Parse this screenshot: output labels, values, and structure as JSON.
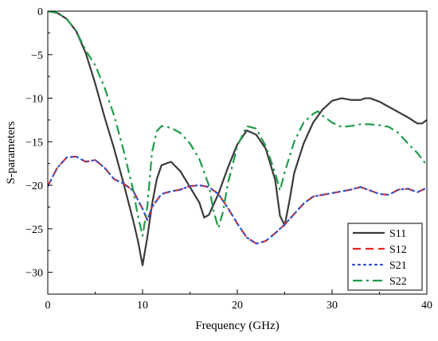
{
  "chart_data": {
    "type": "line",
    "xlabel": "Frequency (GHz)",
    "ylabel": "S-parameters",
    "xlim": [
      0,
      40
    ],
    "ylim": [
      -32.5,
      0
    ],
    "xticks": [
      0,
      10,
      20,
      30,
      40
    ],
    "xtick_labels": [
      "0",
      "10",
      "20",
      "30",
      "40"
    ],
    "yticks": [
      0,
      -5,
      -10,
      -15,
      -20,
      -25,
      -30
    ],
    "ytick_labels": [
      "0",
      "−5",
      "−10",
      "−15",
      "−20",
      "−25",
      "−30"
    ],
    "grid": false,
    "legend_position": "bottom-right",
    "series": [
      {
        "name": "S11",
        "color": "#3a3a3a",
        "dash": "solid",
        "points": [
          [
            0,
            0
          ],
          [
            1,
            -0.2
          ],
          [
            2,
            -0.9
          ],
          [
            3,
            -2.3
          ],
          [
            4,
            -4.8
          ],
          [
            5,
            -8.3
          ],
          [
            6,
            -12.2
          ],
          [
            7,
            -15.8
          ],
          [
            8,
            -19.8
          ],
          [
            9,
            -24.0
          ],
          [
            9.5,
            -26.3
          ],
          [
            10,
            -29.2
          ],
          [
            10.5,
            -26.0
          ],
          [
            11,
            -22.2
          ],
          [
            11.5,
            -19.3
          ],
          [
            12,
            -17.7
          ],
          [
            13,
            -17.3
          ],
          [
            14,
            -18.4
          ],
          [
            15,
            -20.2
          ],
          [
            16,
            -22.0
          ],
          [
            16.5,
            -23.7
          ],
          [
            17,
            -23.4
          ],
          [
            18,
            -21.0
          ],
          [
            19,
            -18.0
          ],
          [
            20,
            -15.3
          ],
          [
            21,
            -13.7
          ],
          [
            22,
            -14.2
          ],
          [
            23,
            -15.8
          ],
          [
            24,
            -19.4
          ],
          [
            24.5,
            -23.5
          ],
          [
            25,
            -24.6
          ],
          [
            25.5,
            -21.8
          ],
          [
            26,
            -18.6
          ],
          [
            27,
            -15.2
          ],
          [
            28,
            -12.8
          ],
          [
            29,
            -11.3
          ],
          [
            30,
            -10.3
          ],
          [
            31,
            -10.0
          ],
          [
            32,
            -10.2
          ],
          [
            33,
            -10.2
          ],
          [
            33.5,
            -10.0
          ],
          [
            34,
            -10.0
          ],
          [
            35,
            -10.4
          ],
          [
            36,
            -11.0
          ],
          [
            37,
            -11.6
          ],
          [
            38,
            -12.2
          ],
          [
            39,
            -12.9
          ],
          [
            39.5,
            -12.9
          ],
          [
            40,
            -12.5
          ]
        ]
      },
      {
        "name": "S12",
        "color": "#e4261f",
        "dash": "dashed",
        "points": [
          [
            0,
            -20.1
          ],
          [
            1,
            -18.0
          ],
          [
            2,
            -16.8
          ],
          [
            3,
            -16.7
          ],
          [
            4,
            -17.3
          ],
          [
            5,
            -17.1
          ],
          [
            6,
            -18.0
          ],
          [
            7,
            -19.3
          ],
          [
            8,
            -19.8
          ],
          [
            9,
            -20.6
          ],
          [
            10,
            -22.7
          ],
          [
            10.5,
            -24.0
          ],
          [
            11,
            -22.5
          ],
          [
            12,
            -21.0
          ],
          [
            13,
            -20.7
          ],
          [
            14,
            -20.5
          ],
          [
            15,
            -20.1
          ],
          [
            16,
            -20.0
          ],
          [
            17,
            -20.2
          ],
          [
            18,
            -21.0
          ],
          [
            19,
            -22.6
          ],
          [
            20,
            -24.4
          ],
          [
            21,
            -26.0
          ],
          [
            22,
            -26.7
          ],
          [
            23,
            -26.4
          ],
          [
            24,
            -25.5
          ],
          [
            25,
            -24.5
          ],
          [
            26,
            -23.3
          ],
          [
            27,
            -22.1
          ],
          [
            28,
            -21.3
          ],
          [
            30,
            -20.9
          ],
          [
            31,
            -20.7
          ],
          [
            32,
            -20.5
          ],
          [
            33,
            -20.2
          ],
          [
            34,
            -20.6
          ],
          [
            35,
            -21.0
          ],
          [
            36,
            -21.1
          ],
          [
            37,
            -20.5
          ],
          [
            38,
            -20.4
          ],
          [
            39,
            -20.8
          ],
          [
            40,
            -20.3
          ]
        ]
      },
      {
        "name": "S21",
        "color": "#2f54d0",
        "dash": "dotted",
        "points": [
          [
            0,
            -20.1
          ],
          [
            1,
            -18.0
          ],
          [
            2,
            -16.8
          ],
          [
            3,
            -16.7
          ],
          [
            4,
            -17.3
          ],
          [
            5,
            -17.1
          ],
          [
            6,
            -18.0
          ],
          [
            7,
            -19.3
          ],
          [
            8,
            -19.8
          ],
          [
            9,
            -20.6
          ],
          [
            10,
            -22.7
          ],
          [
            10.5,
            -24.0
          ],
          [
            11,
            -22.5
          ],
          [
            12,
            -21.0
          ],
          [
            13,
            -20.7
          ],
          [
            14,
            -20.5
          ],
          [
            15,
            -20.1
          ],
          [
            16,
            -20.0
          ],
          [
            17,
            -20.2
          ],
          [
            18,
            -21.0
          ],
          [
            19,
            -22.6
          ],
          [
            20,
            -24.4
          ],
          [
            21,
            -26.0
          ],
          [
            22,
            -26.7
          ],
          [
            23,
            -26.4
          ],
          [
            24,
            -25.5
          ],
          [
            25,
            -24.5
          ],
          [
            26,
            -23.3
          ],
          [
            27,
            -22.1
          ],
          [
            28,
            -21.3
          ],
          [
            30,
            -20.9
          ],
          [
            31,
            -20.7
          ],
          [
            32,
            -20.5
          ],
          [
            33,
            -20.2
          ],
          [
            34,
            -20.6
          ],
          [
            35,
            -21.0
          ],
          [
            36,
            -21.1
          ],
          [
            37,
            -20.5
          ],
          [
            38,
            -20.4
          ],
          [
            39,
            -20.8
          ],
          [
            40,
            -20.3
          ]
        ]
      },
      {
        "name": "S22",
        "color": "#1f9c4a",
        "dash": "dashdot",
        "points": [
          [
            0,
            0
          ],
          [
            1,
            -0.2
          ],
          [
            2,
            -0.9
          ],
          [
            3,
            -2.3
          ],
          [
            4,
            -4.5
          ],
          [
            5,
            -6.2
          ],
          [
            6,
            -8.8
          ],
          [
            7,
            -12.0
          ],
          [
            8,
            -16.0
          ],
          [
            9,
            -20.5
          ],
          [
            9.5,
            -23.5
          ],
          [
            10,
            -25.8
          ],
          [
            10.5,
            -22.5
          ],
          [
            11,
            -16.2
          ],
          [
            11.5,
            -13.8
          ],
          [
            12,
            -13.2
          ],
          [
            13,
            -13.4
          ],
          [
            14,
            -14.0
          ],
          [
            15,
            -15.2
          ],
          [
            16,
            -17.0
          ],
          [
            17,
            -20.0
          ],
          [
            17.5,
            -23.0
          ],
          [
            18,
            -24.9
          ],
          [
            18.5,
            -23.0
          ],
          [
            19,
            -19.8
          ],
          [
            20,
            -15.5
          ],
          [
            21,
            -13.2
          ],
          [
            22,
            -13.5
          ],
          [
            23,
            -15.5
          ],
          [
            24,
            -18.6
          ],
          [
            24.5,
            -20.6
          ],
          [
            25,
            -18.5
          ],
          [
            26,
            -15.0
          ],
          [
            27,
            -12.8
          ],
          [
            28,
            -11.8
          ],
          [
            28.5,
            -11.5
          ],
          [
            29,
            -12.0
          ],
          [
            30,
            -12.8
          ],
          [
            31,
            -13.3
          ],
          [
            32,
            -13.2
          ],
          [
            33,
            -13.0
          ],
          [
            34,
            -13.0
          ],
          [
            35,
            -13.1
          ],
          [
            36,
            -13.3
          ],
          [
            37,
            -14.0
          ],
          [
            38,
            -15.2
          ],
          [
            39,
            -16.3
          ],
          [
            40,
            -17.7
          ]
        ]
      }
    ]
  }
}
